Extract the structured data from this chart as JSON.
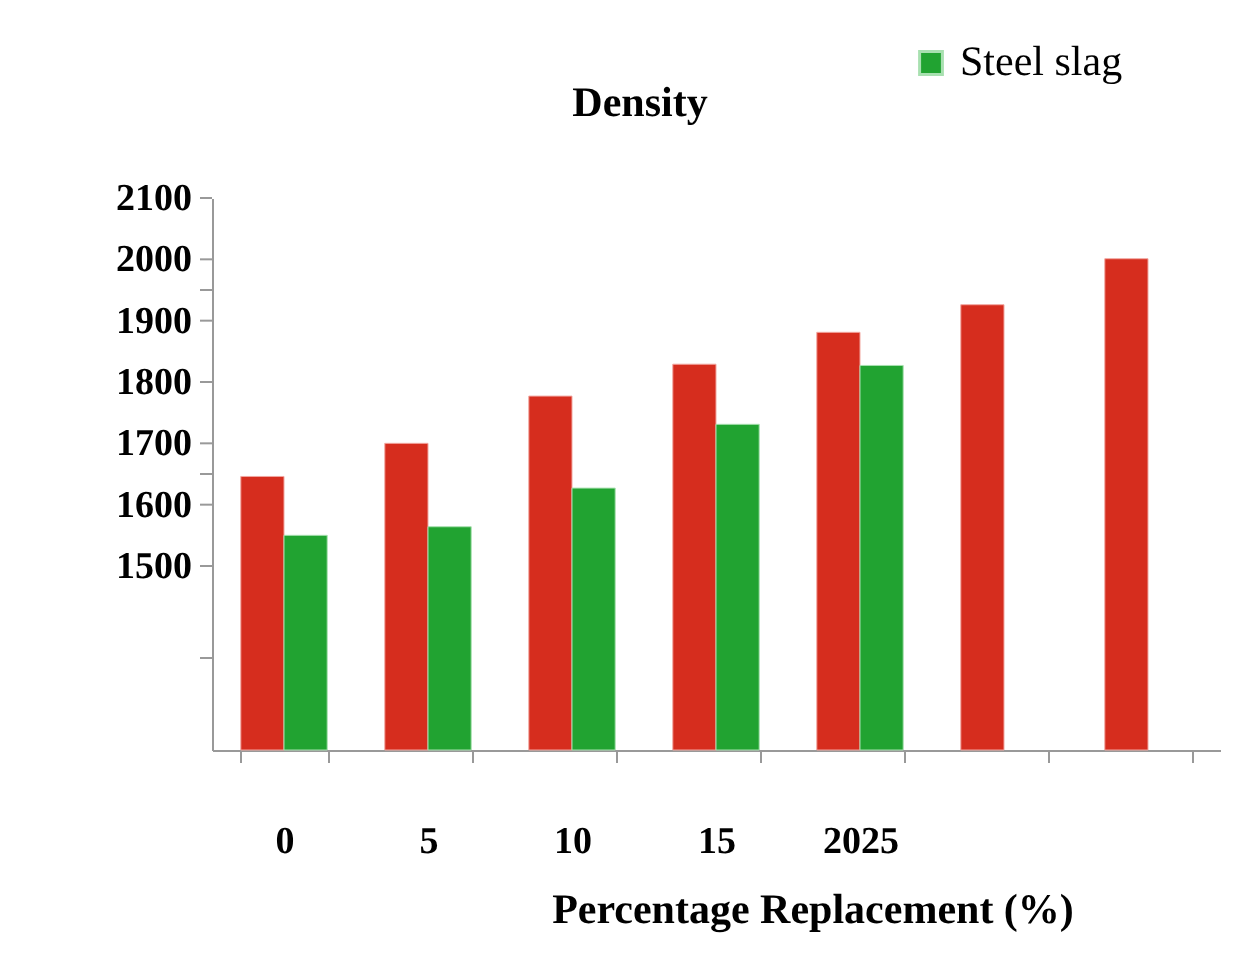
{
  "chart_data": {
    "type": "bar",
    "title": "Density",
    "xlabel": "Percentage Replacement  (%)",
    "categories": [
      "0",
      "5",
      "10",
      "15",
      "2025",
      null,
      null
    ],
    "series": [
      {
        "color": "#d62d1e",
        "values": [
          1646,
          1700,
          1777,
          1829,
          1881,
          1926,
          2001
        ]
      },
      {
        "name": "Steel slag",
        "color": "#21a331",
        "values": [
          1550,
          1564,
          1627,
          1731,
          1827,
          null,
          null
        ]
      }
    ],
    "ylim": [
      1200,
      2100
    ],
    "yticks": [
      2100,
      2000,
      1900,
      1800,
      1700,
      1600,
      1500,
      {
        "value": 1950,
        "label": null
      },
      {
        "value": 1650,
        "label": null
      },
      {
        "value": 1350,
        "label": null
      }
    ],
    "grid": false,
    "legend": "top right"
  }
}
